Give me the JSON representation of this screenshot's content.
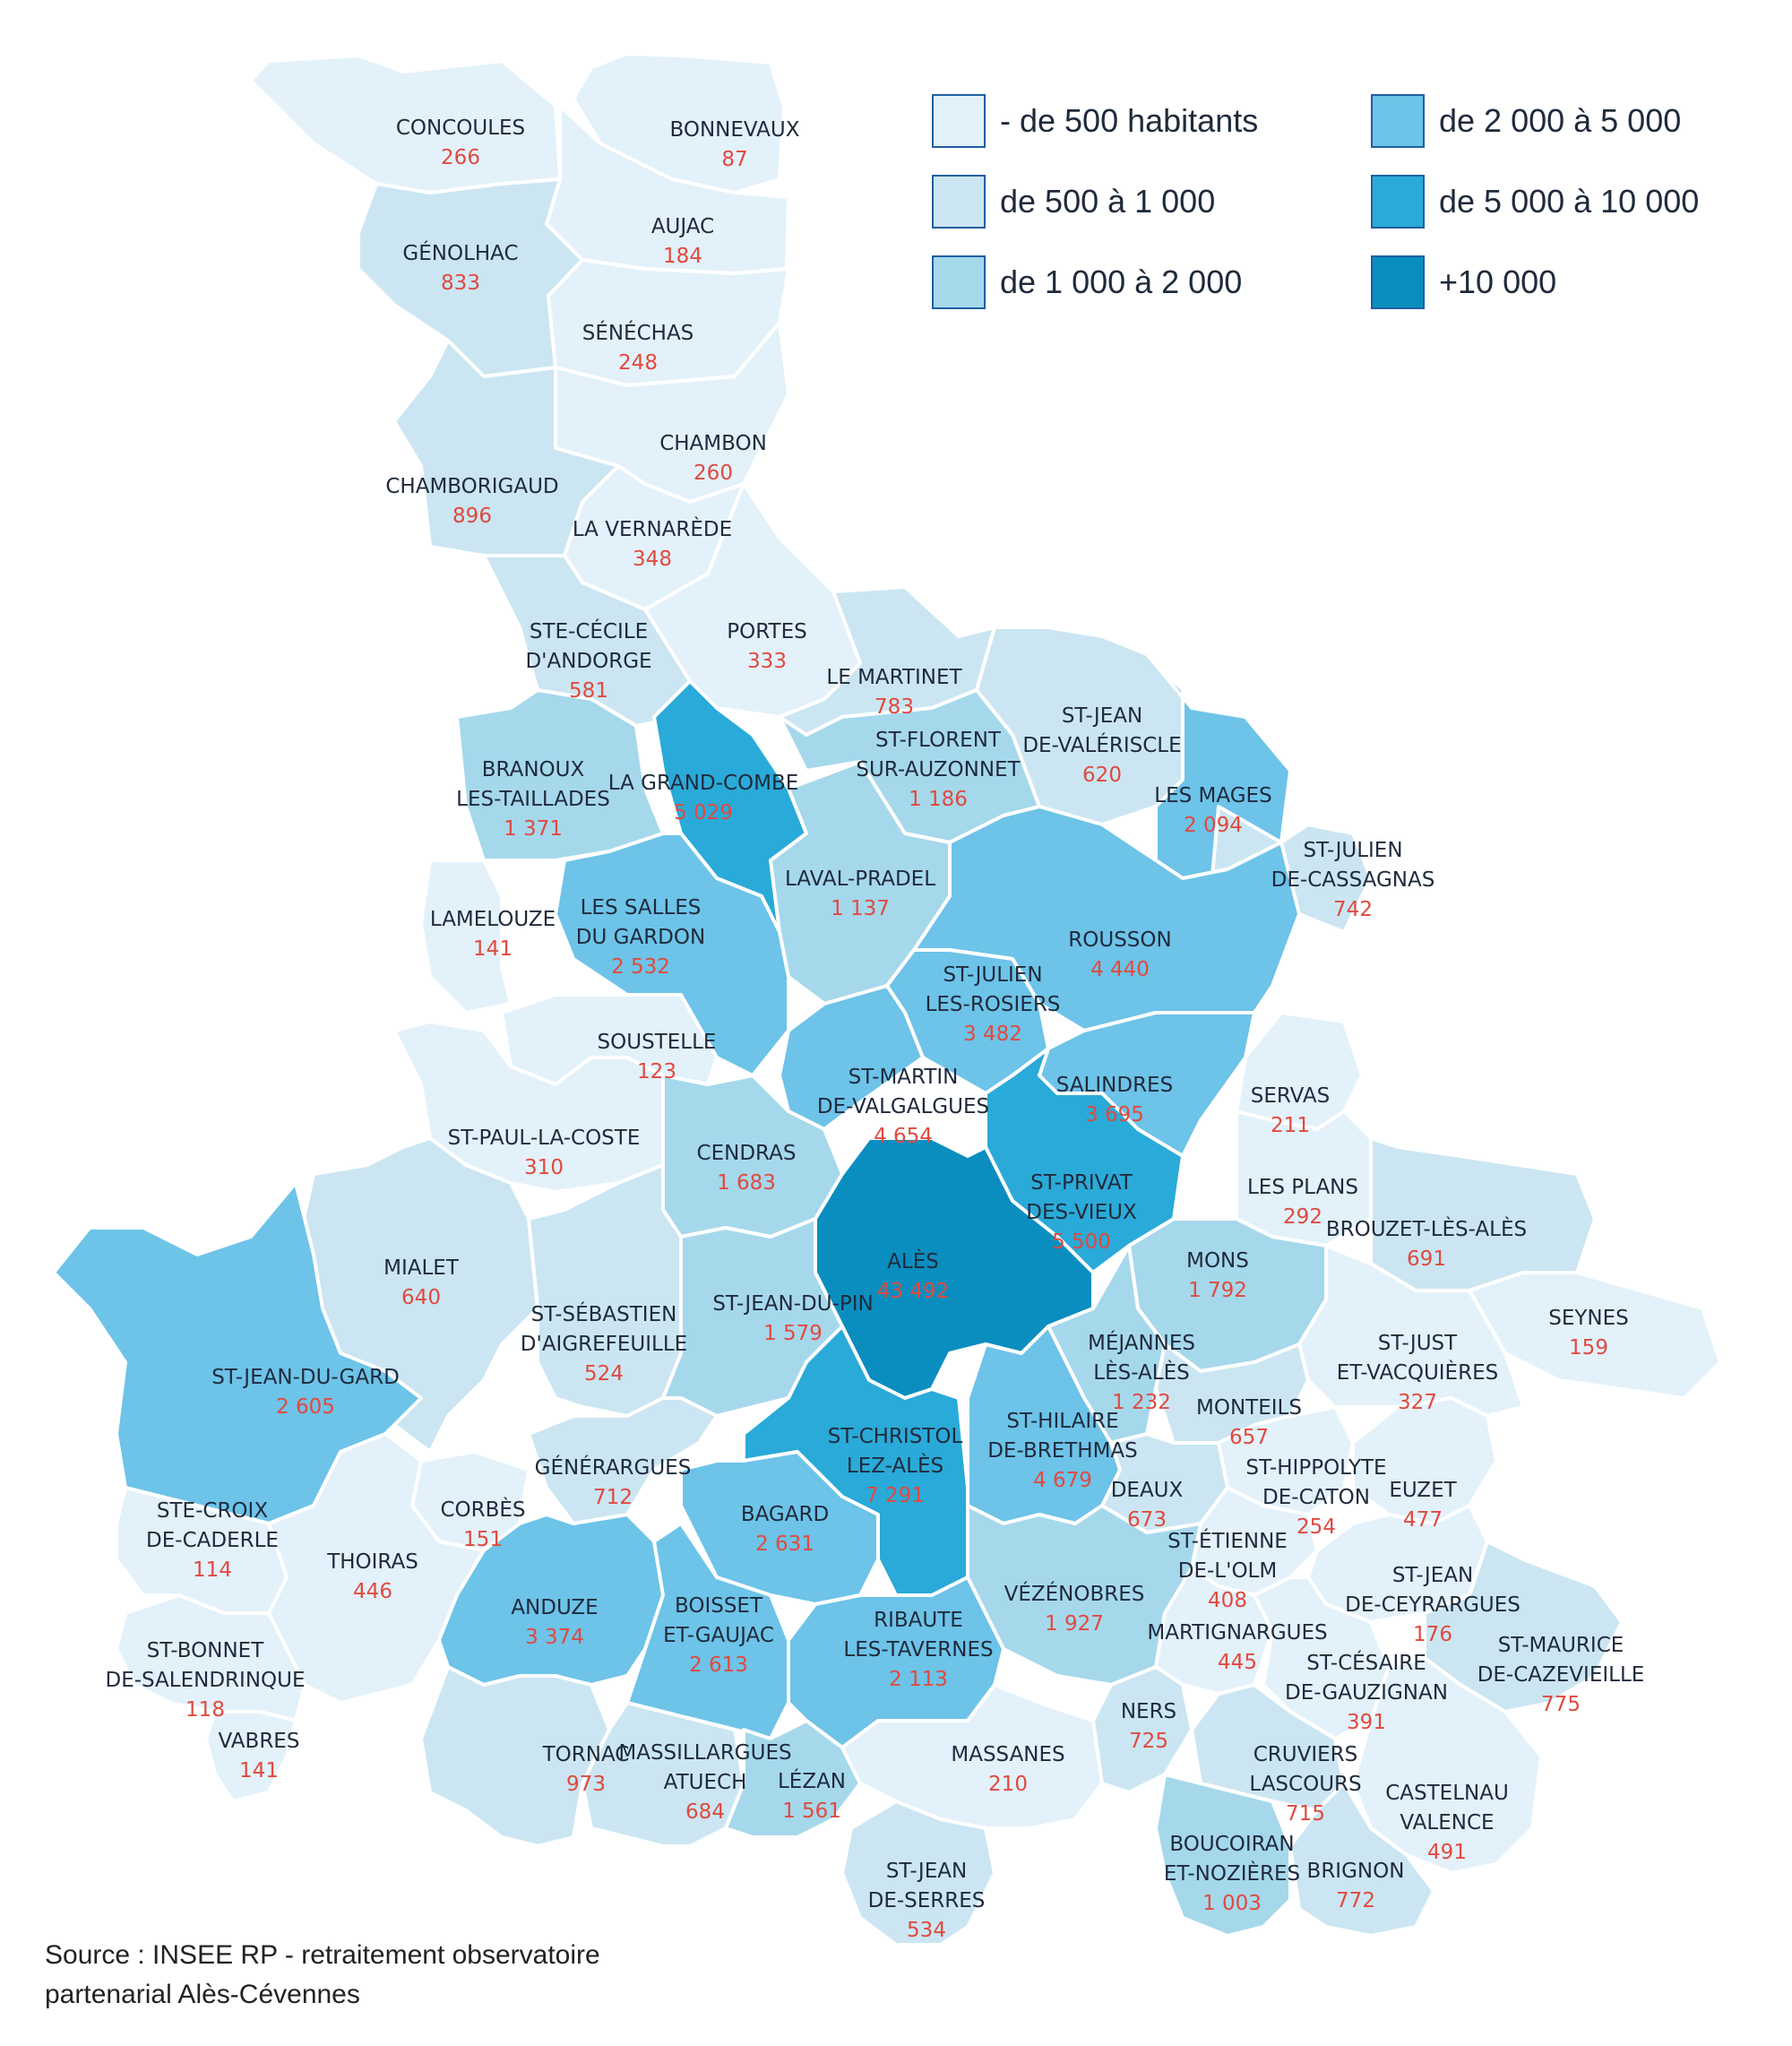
{
  "legend": {
    "classes": [
      {
        "label": "- de 500 habitants",
        "color": "#e3f1fa"
      },
      {
        "label": "de 500 à 1 000",
        "color": "#cbe6f2"
      },
      {
        "label": "de 1 000 à 2 000",
        "color": "#a6d8ec"
      },
      {
        "label": "de 2 000 à 5 000",
        "color": "#6dc3e8"
      },
      {
        "label": "de 5 000 à 10 000",
        "color": "#2aaad8"
      },
      {
        "label": "+10 000",
        "color": "#0a8ebf"
      }
    ]
  },
  "source": {
    "line1": "Source : INSEE RP - retraitement observatoire",
    "line2": "partenarial Alès-Cévennes"
  },
  "communes": [
    {
      "lines": [
        "CONCOULES"
      ],
      "pop": "266",
      "cls": 0
    },
    {
      "lines": [
        "BONNEVAUX"
      ],
      "pop": "87",
      "cls": 0
    },
    {
      "lines": [
        "AUJAC"
      ],
      "pop": "184",
      "cls": 0
    },
    {
      "lines": [
        "GÉNOLHAC"
      ],
      "pop": "833",
      "cls": 1
    },
    {
      "lines": [
        "SÉNÉCHAS"
      ],
      "pop": "248",
      "cls": 0
    },
    {
      "lines": [
        "CHAMBON"
      ],
      "pop": "260",
      "cls": 0
    },
    {
      "lines": [
        "CHAMBORIGAUD"
      ],
      "pop": "896",
      "cls": 1
    },
    {
      "lines": [
        "LA VERNARÈDE"
      ],
      "pop": "348",
      "cls": 0
    },
    {
      "lines": [
        "STE-CÉCILE",
        "D'ANDORGE"
      ],
      "pop": "581",
      "cls": 1
    },
    {
      "lines": [
        "PORTES"
      ],
      "pop": "333",
      "cls": 0
    },
    {
      "lines": [
        "LE MARTINET"
      ],
      "pop": "783",
      "cls": 1
    },
    {
      "lines": [
        "ST-JEAN",
        "DE-VALÉRISCLE"
      ],
      "pop": "620",
      "cls": 1
    },
    {
      "lines": [
        "ST-FLORENT",
        "SUR-AUZONNET"
      ],
      "pop": "1 186",
      "cls": 2
    },
    {
      "lines": [
        "BRANOUX",
        "LES-TAILLADES"
      ],
      "pop": "1 371",
      "cls": 2
    },
    {
      "lines": [
        "LA GRAND-COMBE"
      ],
      "pop": "5 029",
      "cls": 4
    },
    {
      "lines": [
        "LES MAGES"
      ],
      "pop": "2 094",
      "cls": 3
    },
    {
      "lines": [
        "ST-JULIEN",
        "DE-CASSAGNAS"
      ],
      "pop": "742",
      "cls": 1
    },
    {
      "lines": [
        "LAVAL-PRADEL"
      ],
      "pop": "1 137",
      "cls": 2
    },
    {
      "lines": [
        "LAMELOUZE"
      ],
      "pop": "141",
      "cls": 0
    },
    {
      "lines": [
        "LES SALLES",
        "DU GARDON"
      ],
      "pop": "2 532",
      "cls": 3
    },
    {
      "lines": [
        "ROUSSON"
      ],
      "pop": "4 440",
      "cls": 3
    },
    {
      "lines": [
        "ST-JULIEN",
        "LES-ROSIERS"
      ],
      "pop": "3 482",
      "cls": 3
    },
    {
      "lines": [
        "SOUSTELLE"
      ],
      "pop": "123",
      "cls": 0
    },
    {
      "lines": [
        "ST-MARTIN",
        "DE-VALGALGUES"
      ],
      "pop": "4 654",
      "cls": 3
    },
    {
      "lines": [
        "SALINDRES"
      ],
      "pop": "3 695",
      "cls": 3
    },
    {
      "lines": [
        "SERVAS"
      ],
      "pop": "211",
      "cls": 0
    },
    {
      "lines": [
        "ST-PAUL-LA-COSTE"
      ],
      "pop": "310",
      "cls": 0
    },
    {
      "lines": [
        "CENDRAS"
      ],
      "pop": "1 683",
      "cls": 2
    },
    {
      "lines": [
        "ST-PRIVAT",
        "DES-VIEUX"
      ],
      "pop": "5 500",
      "cls": 4
    },
    {
      "lines": [
        "LES PLANS"
      ],
      "pop": "292",
      "cls": 0
    },
    {
      "lines": [
        "BROUZET-LÈS-ALÈS"
      ],
      "pop": "691",
      "cls": 1
    },
    {
      "lines": [
        "MIALET"
      ],
      "pop": "640",
      "cls": 1
    },
    {
      "lines": [
        "ALÈS"
      ],
      "pop": "43 492",
      "cls": 5
    },
    {
      "lines": [
        "MONS"
      ],
      "pop": "1 792",
      "cls": 2
    },
    {
      "lines": [
        "SEYNES"
      ],
      "pop": "159",
      "cls": 0
    },
    {
      "lines": [
        "ST-SÉBASTIEN",
        "D'AIGREFEUILLE"
      ],
      "pop": "524",
      "cls": 1
    },
    {
      "lines": [
        "ST-JEAN-DU-PIN"
      ],
      "pop": "1 579",
      "cls": 2
    },
    {
      "lines": [
        "MÉJANNES",
        "LÈS-ALÈS"
      ],
      "pop": "1 232",
      "cls": 2
    },
    {
      "lines": [
        "ST-JUST",
        "ET-VACQUIÈRES"
      ],
      "pop": "327",
      "cls": 0
    },
    {
      "lines": [
        "ST-JEAN-DU-GARD"
      ],
      "pop": "2 605",
      "cls": 3
    },
    {
      "lines": [
        "ST-CHRISTOL",
        "LEZ-ALÈS"
      ],
      "pop": "7 291",
      "cls": 4
    },
    {
      "lines": [
        "ST-HILAIRE",
        "DE-BRETHMAS"
      ],
      "pop": "4 679",
      "cls": 3
    },
    {
      "lines": [
        "MONTEILS"
      ],
      "pop": "657",
      "cls": 1
    },
    {
      "lines": [
        "GÉNÉRARGUES"
      ],
      "pop": "712",
      "cls": 1
    },
    {
      "lines": [
        "ST-HIPPOLYTE",
        "DE-CATON"
      ],
      "pop": "254",
      "cls": 0
    },
    {
      "lines": [
        "EUZET"
      ],
      "pop": "477",
      "cls": 0
    },
    {
      "lines": [
        "DEAUX"
      ],
      "pop": "673",
      "cls": 1
    },
    {
      "lines": [
        "STE-CROIX",
        "DE-CADERLE"
      ],
      "pop": "114",
      "cls": 0
    },
    {
      "lines": [
        "CORBÈS"
      ],
      "pop": "151",
      "cls": 0
    },
    {
      "lines": [
        "BAGARD"
      ],
      "pop": "2 631",
      "cls": 3
    },
    {
      "lines": [
        "THOIRAS"
      ],
      "pop": "446",
      "cls": 0
    },
    {
      "lines": [
        "ST-ÉTIENNE",
        "DE-L'OLM"
      ],
      "pop": "408",
      "cls": 0
    },
    {
      "lines": [
        "ST-JEAN",
        "DE-CEYRARGUES"
      ],
      "pop": "176",
      "cls": 0
    },
    {
      "lines": [
        "VÉZÉNOBRES"
      ],
      "pop": "1 927",
      "cls": 2
    },
    {
      "lines": [
        "ANDUZE"
      ],
      "pop": "3 374",
      "cls": 3
    },
    {
      "lines": [
        "BOISSET",
        "ET-GAUJAC"
      ],
      "pop": "2 613",
      "cls": 3
    },
    {
      "lines": [
        "RIBAUTE",
        "LES-TAVERNES"
      ],
      "pop": "2 113",
      "cls": 3
    },
    {
      "lines": [
        "MARTIGNARGUES"
      ],
      "pop": "445",
      "cls": 0
    },
    {
      "lines": [
        "ST-CÉSAIRE",
        "DE-GAUZIGNAN"
      ],
      "pop": "391",
      "cls": 0
    },
    {
      "lines": [
        "ST-MAURICE",
        "DE-CAZEVIEILLE"
      ],
      "pop": "775",
      "cls": 1
    },
    {
      "lines": [
        "ST-BONNET",
        "DE-SALENDRINQUE"
      ],
      "pop": "118",
      "cls": 0
    },
    {
      "lines": [
        "VABRES"
      ],
      "pop": "141",
      "cls": 0
    },
    {
      "lines": [
        "TORNAC"
      ],
      "pop": "973",
      "cls": 1
    },
    {
      "lines": [
        "MASSILLARGUES",
        "ATUECH"
      ],
      "pop": "684",
      "cls": 1
    },
    {
      "lines": [
        "LÉZAN"
      ],
      "pop": "1 561",
      "cls": 2
    },
    {
      "lines": [
        "MASSANES"
      ],
      "pop": "210",
      "cls": 0
    },
    {
      "lines": [
        "NERS"
      ],
      "pop": "725",
      "cls": 1
    },
    {
      "lines": [
        "CRUVIERS",
        "LASCOURS"
      ],
      "pop": "715",
      "cls": 1
    },
    {
      "lines": [
        "CASTELNAU",
        "VALENCE"
      ],
      "pop": "491",
      "cls": 0
    },
    {
      "lines": [
        "BOUCOIRAN",
        "ET-NOZIÈRES"
      ],
      "pop": "1 003",
      "cls": 2
    },
    {
      "lines": [
        "BRIGNON"
      ],
      "pop": "772",
      "cls": 1
    },
    {
      "lines": [
        "ST-JEAN",
        "DE-SERRES"
      ],
      "pop": "534",
      "cls": 1
    }
  ]
}
